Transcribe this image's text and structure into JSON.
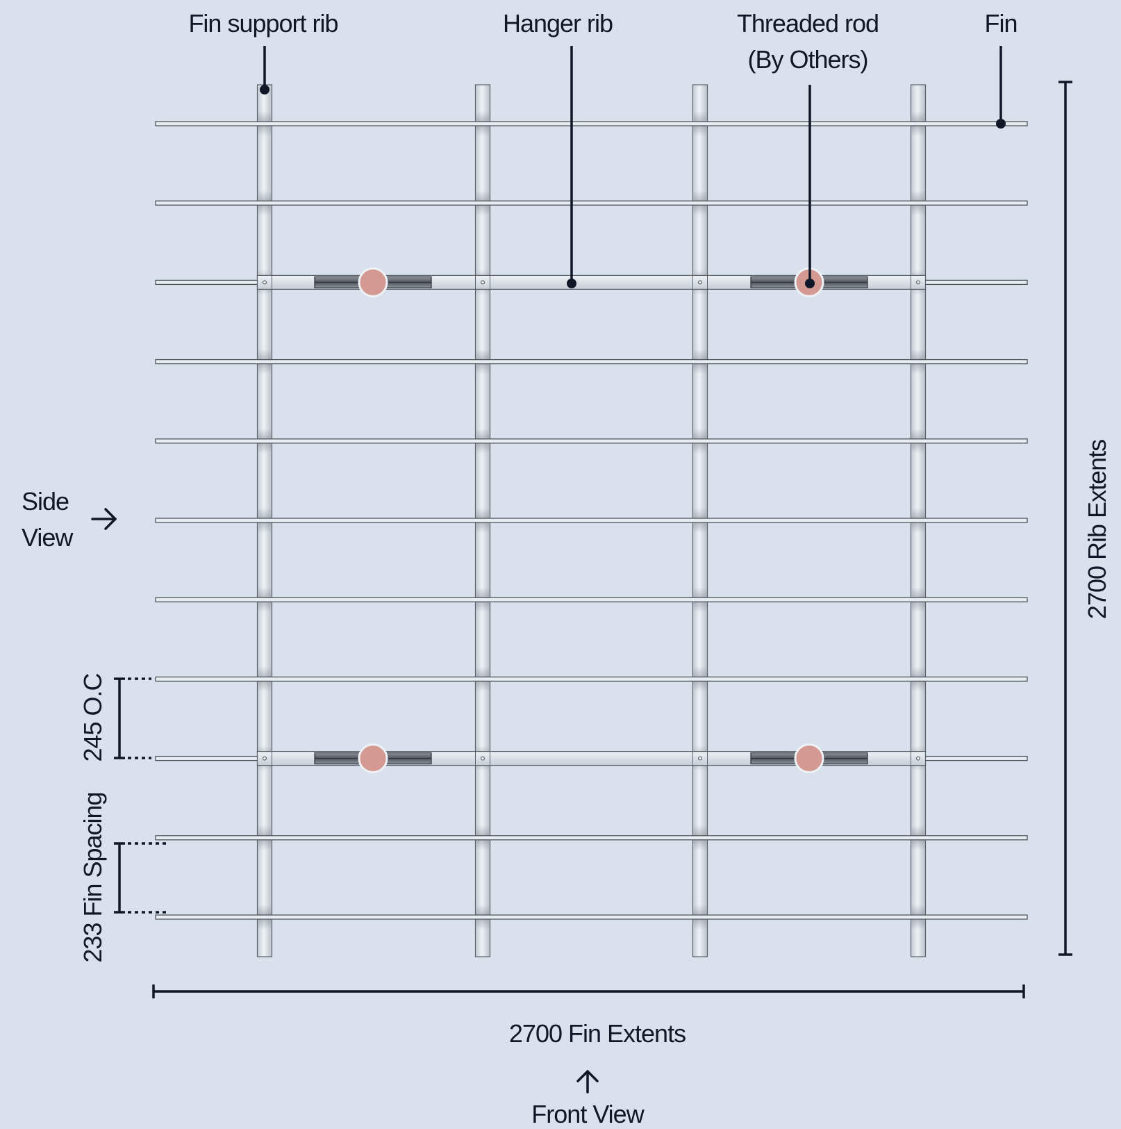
{
  "colors": {
    "background": "#d9e1ec",
    "ink": "#101828",
    "metal_light": "#e6ebf0",
    "metal_mid": "#c3cad3",
    "metal_dark": "#8d949c",
    "bracket": "#5f656c",
    "rod": "#d49990"
  },
  "callouts": {
    "fin_support_rib": "Fin support rib",
    "hanger_rib": "Hanger rib",
    "threaded_rod_line1": "Threaded rod",
    "threaded_rod_line2": "(By Others)",
    "fin": "Fin"
  },
  "views": {
    "side_line1": "Side",
    "side_line2": "View",
    "front": "Front View"
  },
  "dimensions": {
    "rib_extents": "2700 Rib Extents",
    "fin_extents": "2700 Fin Extents",
    "oc_spacing": "245 O.C",
    "fin_spacing": "233 Fin Spacing"
  },
  "structure": {
    "fin_count": 11,
    "rib_count": 4,
    "hanger_rib_count": 2,
    "threaded_rod_count": 4,
    "rib_extents_mm": 2700,
    "fin_extents_mm": 2700,
    "hanger_oc_mm": 245,
    "fin_spacing_mm": 233
  },
  "icons": {
    "side_view_arrow": "arrow-right-icon",
    "front_view_arrow": "arrow-up-icon"
  }
}
